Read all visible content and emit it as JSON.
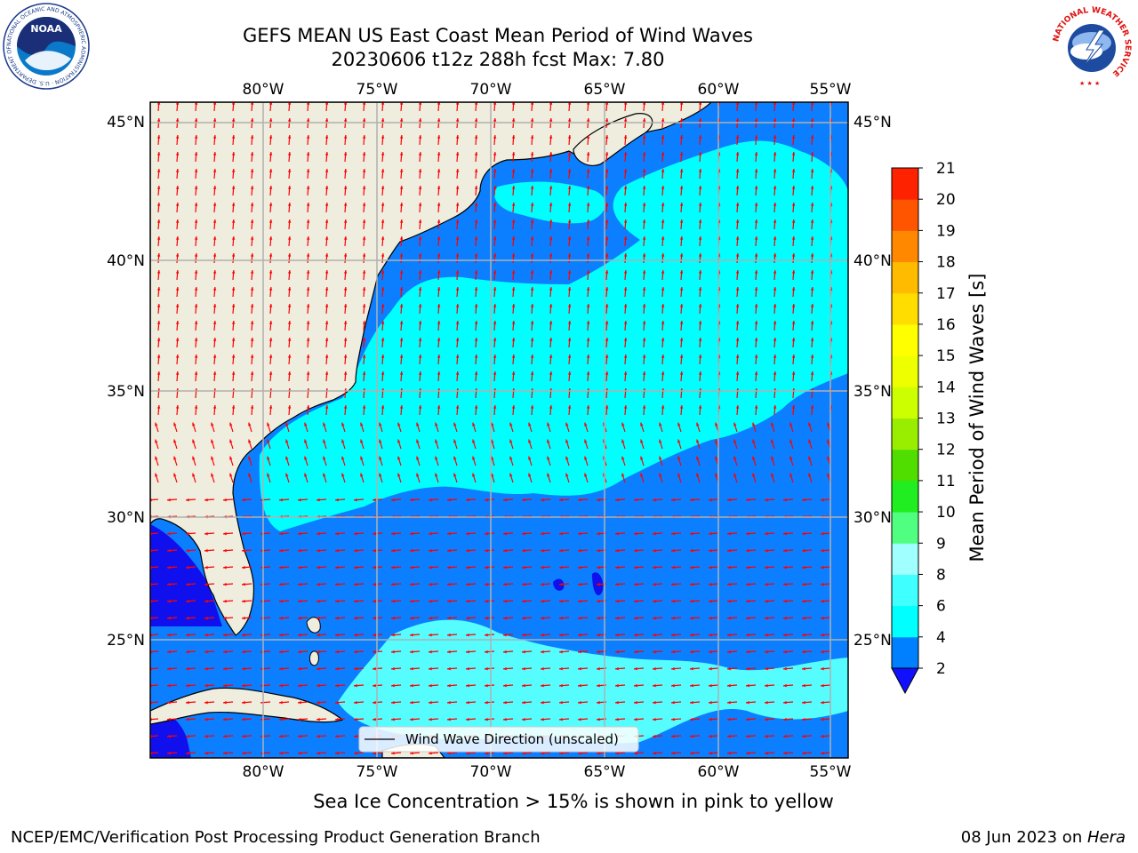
{
  "title": {
    "line1": "GEFS MEAN US East Coast Mean Period of Wind Waves",
    "line2": "20230606 t12z 288h fcst   Max: 7.80"
  },
  "logos": {
    "noaa": {
      "text": "NOAA",
      "ring_text": "NATIONAL OCEANIC AND ATMOSPHERIC ADMINISTRATION · U.S. DEPARTMENT OF COMMERCE ·",
      "icon": "noaa-logo-icon"
    },
    "nws": {
      "ring_text": "NATIONAL WEATHER SERVICE",
      "icon": "nws-logo-icon"
    }
  },
  "map": {
    "lon_labels": [
      "80°W",
      "75°W",
      "70°W",
      "65°W",
      "60°W",
      "55°W"
    ],
    "lat_labels": [
      "45°N",
      "40°N",
      "35°N",
      "30°N",
      "25°N"
    ],
    "legend_label": "Wind Wave Direction (unscaled)",
    "colors": {
      "land": "#efedde",
      "period_0_2": "#1010ee",
      "period_2_4": "#0b7fff",
      "period_4_6": "#00ffff",
      "period_6_8": "#55fdff",
      "arrow": "#ff0000",
      "grid": "#b0b0b0"
    }
  },
  "colorbar": {
    "label": "Mean Period of Wind Waves [s]",
    "ticks": [
      "2",
      "4",
      "6",
      "8",
      "9",
      "10",
      "11",
      "12",
      "13",
      "14",
      "15",
      "16",
      "17",
      "18",
      "19",
      "20",
      "21"
    ],
    "colors": [
      "#0080ff",
      "#00ffff",
      "#40ffff",
      "#a0ffff",
      "#50ff80",
      "#20ee20",
      "#50dd00",
      "#99ee00",
      "#ccff00",
      "#eeff00",
      "#ffff00",
      "#ffdd00",
      "#ffbb00",
      "#ff8800",
      "#ff5500",
      "#ff2200"
    ],
    "under_color": "#1010ff",
    "over_color": "#ff0000"
  },
  "bottom_note": "Sea Ice Concentration > 15% is shown in pink to yellow",
  "footer": {
    "left": "NCEP/EMC/Verification Post Processing Product Generation Branch",
    "right_prefix": "08 Jun 2023 on ",
    "right_host": "Hera"
  }
}
